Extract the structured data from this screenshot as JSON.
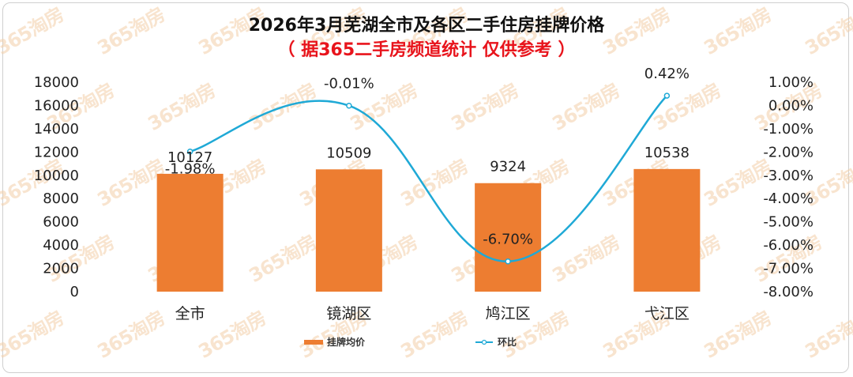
{
  "watermark_text": "365淘房",
  "colors": {
    "bar": "#ED7D31",
    "line": "#1FA9D6",
    "title": "#111111",
    "subtitle": "#E8141C"
  },
  "chart_data": {
    "type": "bar",
    "title": "2026年3月芜湖全市及各区二手住房挂牌价格",
    "subtitle": "（ 据365二手房频道统计 仅供参考 ）",
    "categories": [
      "全市",
      "镜湖区",
      "鸠江区",
      "弋江区"
    ],
    "series": [
      {
        "name": "挂牌均价",
        "type": "bar",
        "axis": "left",
        "values": [
          10127,
          10509,
          9324,
          10538
        ],
        "labels": [
          "10127",
          "10509",
          "9324",
          "10538"
        ]
      },
      {
        "name": "环比",
        "type": "line",
        "axis": "right",
        "values": [
          -1.98,
          -0.01,
          -6.7,
          0.42
        ],
        "labels": [
          "-1.98%",
          "-0.01%",
          "-6.70%",
          "0.42%"
        ]
      }
    ],
    "left_axis": {
      "ylim": [
        0,
        18000
      ],
      "ticks": [
        "0",
        "2000",
        "4000",
        "6000",
        "8000",
        "10000",
        "12000",
        "14000",
        "16000",
        "18000"
      ]
    },
    "right_axis": {
      "ylim": [
        -8,
        1
      ],
      "ticks": [
        "-8.00%",
        "-7.00%",
        "-6.00%",
        "-5.00%",
        "-4.00%",
        "-3.00%",
        "-2.00%",
        "-1.00%",
        "0.00%",
        "1.00%"
      ]
    },
    "legend": {
      "position": "bottom"
    },
    "grid": false
  }
}
